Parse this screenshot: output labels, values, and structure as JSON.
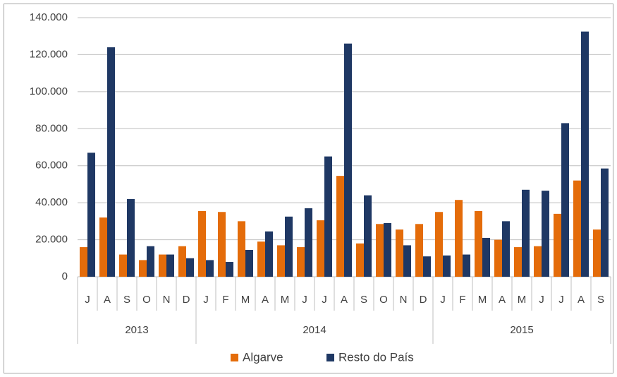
{
  "chart_data": {
    "type": "bar",
    "groups": [
      {
        "name": "2013",
        "categories": [
          "J",
          "A",
          "S",
          "O",
          "N",
          "D"
        ]
      },
      {
        "name": "2014",
        "categories": [
          "J",
          "F",
          "M",
          "A",
          "M",
          "J",
          "J",
          "A",
          "S",
          "O",
          "N",
          "D"
        ]
      },
      {
        "name": "2015",
        "categories": [
          "J",
          "F",
          "M",
          "A",
          "M",
          "J",
          "J",
          "A",
          "S"
        ]
      }
    ],
    "series": [
      {
        "name": "Algarve",
        "color": "#e46c0a",
        "values": [
          16000,
          32000,
          12000,
          9000,
          12000,
          16500,
          35500,
          35000,
          30000,
          19000,
          17000,
          16000,
          30500,
          54500,
          18000,
          28500,
          25500,
          28500,
          35000,
          41500,
          35500,
          20000,
          16000,
          16500,
          34000,
          52000,
          25500
        ]
      },
      {
        "name": "Resto do País",
        "color": "#1f3864",
        "values": [
          67000,
          124000,
          42000,
          16500,
          12000,
          10000,
          9000,
          8000,
          14500,
          24500,
          32500,
          37000,
          65000,
          126000,
          44000,
          29000,
          17000,
          11000,
          11500,
          12000,
          21000,
          30000,
          47000,
          46500,
          83000,
          132500,
          58500
        ]
      }
    ],
    "ylim": [
      0,
      140000
    ],
    "yticks": [
      0,
      {
        "value": 20000,
        "label": "20.000"
      },
      {
        "value": 40000,
        "label": "40.000"
      },
      {
        "value": 60000,
        "label": "60.000"
      },
      {
        "value": 80000,
        "label": "80.000"
      },
      {
        "value": 100000,
        "label": "100.000"
      },
      {
        "value": 120000,
        "label": "120.000"
      },
      {
        "value": 140000,
        "label": "140.000"
      }
    ],
    "grid": true,
    "legend": "bottom"
  }
}
